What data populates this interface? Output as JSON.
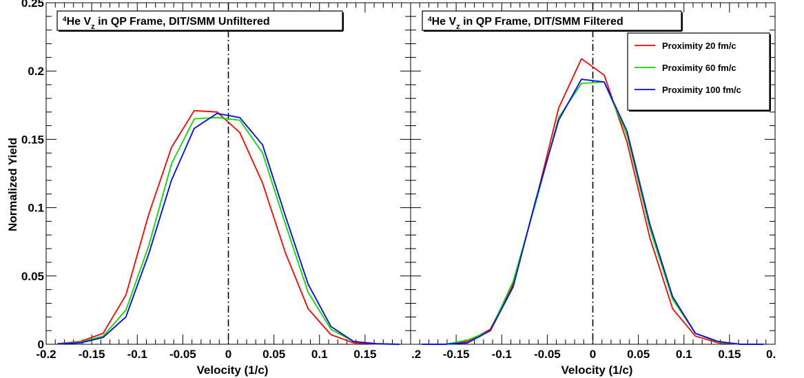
{
  "chart_data": [
    {
      "type": "line",
      "panel": "left",
      "title": {
        "sup": "4",
        "pre": "He V",
        "sub": "z",
        "post": " in QP Frame, DIT/SMM Unfiltered"
      },
      "xlabel": "Velocity (1/c)",
      "ylabel": "Normalized Yield",
      "xlim": [
        -0.2,
        0.2
      ],
      "ylim": [
        0,
        0.25
      ],
      "xticks": [
        "-0.2",
        "-0.15",
        "-0.1",
        "-0.05",
        "0",
        "0.05",
        "0.1",
        "0.15"
      ],
      "yticks": [
        "0",
        "0.05",
        "0.1",
        "0.15",
        "0.2",
        "0.25"
      ],
      "reference_line_x": 0,
      "series": [
        {
          "name": "Proximity 20 fm/c",
          "color": "#ff0000",
          "x": [
            -0.1875,
            -0.1625,
            -0.1375,
            -0.1125,
            -0.0875,
            -0.0625,
            -0.0375,
            -0.0125,
            0.0125,
            0.0375,
            0.0625,
            0.0875,
            0.1125,
            0.1375,
            0.1625,
            0.1875
          ],
          "y": [
            0.0005,
            0.002,
            0.008,
            0.036,
            0.095,
            0.144,
            0.171,
            0.17,
            0.155,
            0.118,
            0.067,
            0.026,
            0.007,
            0.001,
            0.0002,
            0.0
          ]
        },
        {
          "name": "Proximity 60 fm/c",
          "color": "#00e000",
          "x": [
            -0.1875,
            -0.1625,
            -0.1375,
            -0.1125,
            -0.0875,
            -0.0625,
            -0.0375,
            -0.0125,
            0.0125,
            0.0375,
            0.0625,
            0.0875,
            0.1125,
            0.1375,
            0.1625,
            0.1875
          ],
          "y": [
            0.0003,
            0.0015,
            0.006,
            0.025,
            0.072,
            0.132,
            0.165,
            0.166,
            0.164,
            0.14,
            0.088,
            0.038,
            0.011,
            0.002,
            0.0003,
            0.0
          ]
        },
        {
          "name": "Proximity 100 fm/c",
          "color": "#0000ff",
          "x": [
            -0.1875,
            -0.1625,
            -0.1375,
            -0.1125,
            -0.0875,
            -0.0625,
            -0.0375,
            -0.0125,
            0.0125,
            0.0375,
            0.0625,
            0.0875,
            0.1125,
            0.1375,
            0.1625,
            0.1875
          ],
          "y": [
            0.0002,
            0.001,
            0.005,
            0.02,
            0.066,
            0.12,
            0.158,
            0.169,
            0.166,
            0.146,
            0.094,
            0.044,
            0.013,
            0.002,
            0.0004,
            0.0
          ]
        }
      ]
    },
    {
      "type": "line",
      "panel": "right",
      "title": {
        "sup": "4",
        "pre": "He V",
        "sub": "z",
        "post": " in QP Frame, DIT/SMM Filtered"
      },
      "xlabel": "Velocity (1/c)",
      "ylabel": "",
      "xlim": [
        -0.2,
        0.2
      ],
      "ylim": [
        0,
        0.25
      ],
      "xticks": [
        "-0.15",
        "-0.1",
        "-0.05",
        "0",
        "0.05",
        "0.1",
        "0.15"
      ],
      "xtick_edge_left": ".2",
      "xtick_edge_right": "0.",
      "reference_line_x": 0,
      "legend": {
        "position": "top-right",
        "entries": [
          "Proximity 20 fm/c",
          "Proximity 60 fm/c",
          "Proximity 100 fm/c"
        ]
      },
      "series": [
        {
          "name": "Proximity 20 fm/c",
          "color": "#ff0000",
          "x": [
            -0.1875,
            -0.1625,
            -0.1375,
            -0.1125,
            -0.0875,
            -0.0625,
            -0.0375,
            -0.0125,
            0.0125,
            0.0375,
            0.0625,
            0.0875,
            0.1125,
            0.1375,
            0.1625,
            0.1875
          ],
          "y": [
            0.0,
            0.0,
            0.002,
            0.011,
            0.044,
            0.105,
            0.173,
            0.209,
            0.197,
            0.148,
            0.078,
            0.026,
            0.006,
            0.001,
            0.0,
            0.0
          ]
        },
        {
          "name": "Proximity 60 fm/c",
          "color": "#00e000",
          "x": [
            -0.1875,
            -0.1625,
            -0.1375,
            -0.1125,
            -0.0875,
            -0.0625,
            -0.0375,
            -0.0125,
            0.0125,
            0.0375,
            0.0625,
            0.0875,
            0.1125,
            0.1375,
            0.1625,
            0.1875
          ],
          "y": [
            0.0,
            0.0,
            0.003,
            0.01,
            0.046,
            0.104,
            0.166,
            0.191,
            0.192,
            0.153,
            0.085,
            0.033,
            0.008,
            0.0015,
            0.0,
            0.0
          ]
        },
        {
          "name": "Proximity 100 fm/c",
          "color": "#0000ff",
          "x": [
            -0.1875,
            -0.1625,
            -0.1375,
            -0.1125,
            -0.0875,
            -0.0625,
            -0.0375,
            -0.0125,
            0.0125,
            0.0375,
            0.0625,
            0.0875,
            0.1125,
            0.1375,
            0.1625,
            0.1875
          ],
          "y": [
            0.0,
            0.0,
            0.001,
            0.01,
            0.042,
            0.106,
            0.164,
            0.194,
            0.192,
            0.156,
            0.088,
            0.035,
            0.008,
            0.002,
            0.0,
            0.0
          ]
        }
      ]
    }
  ]
}
